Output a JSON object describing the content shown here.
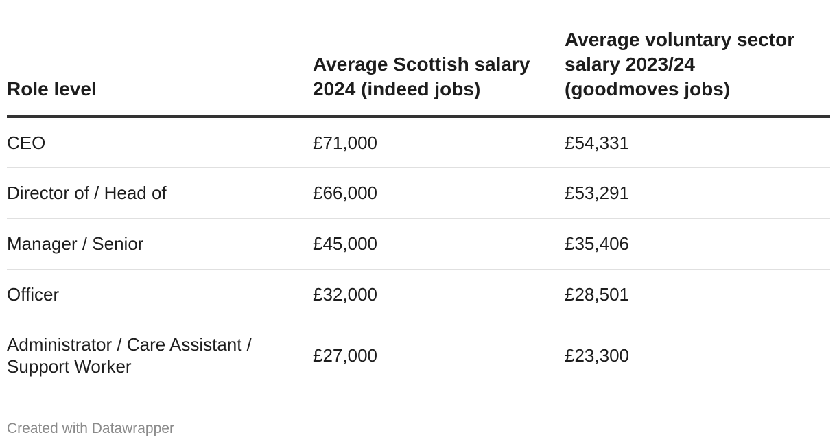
{
  "chart_data": {
    "type": "table",
    "columns": [
      "Role level",
      "Average Scottish salary 2024 (indeed jobs)",
      "Average voluntary sector salary 2023/24 (goodmoves jobs)"
    ],
    "rows": [
      {
        "role": "CEO",
        "scottish": "£71,000",
        "voluntary": "£54,331"
      },
      {
        "role": "Director of / Head of",
        "scottish": "£66,000",
        "voluntary": "£53,291"
      },
      {
        "role": "Manager / Senior",
        "scottish": "£45,000",
        "voluntary": "£35,406"
      },
      {
        "role": "Officer",
        "scottish": "£32,000",
        "voluntary": "£28,501"
      },
      {
        "role": "Administrator / Care Assistant / Support Worker",
        "scottish": "£27,000",
        "voluntary": "£23,300"
      }
    ]
  },
  "footer": {
    "credit": "Created with Datawrapper"
  }
}
